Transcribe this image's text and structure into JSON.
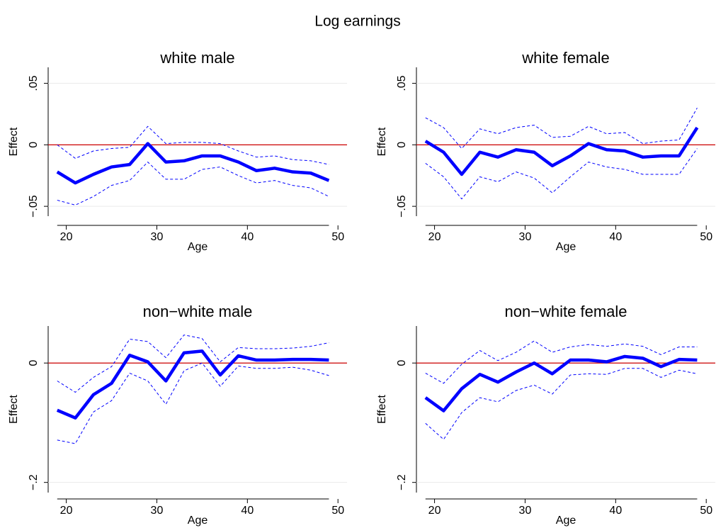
{
  "title": "Log earnings",
  "chart_data": [
    {
      "type": "line",
      "title": "white male",
      "xlabel": "Age",
      "ylabel": "Effect",
      "grid": true,
      "refline": 0,
      "refline_color": "#cc0000",
      "x": [
        19,
        21,
        23,
        25,
        27,
        29,
        31,
        33,
        35,
        37,
        39,
        41,
        43,
        45,
        47,
        49
      ],
      "xlim": [
        18,
        51
      ],
      "xticks": [
        20,
        30,
        40,
        50
      ],
      "ylim": [
        -0.058,
        0.063
      ],
      "yticks": [
        {
          "value": 0.05,
          "label": ".05"
        },
        0,
        {
          "value": -0.05,
          "label": "−.05"
        }
      ],
      "series": [
        {
          "color": "#0000ff",
          "dash": false,
          "values": [
            -0.022,
            -0.031,
            -0.024,
            -0.018,
            -0.016,
            0.001,
            -0.014,
            -0.013,
            -0.009,
            -0.009,
            -0.014,
            -0.021,
            -0.019,
            -0.022,
            -0.023,
            -0.029
          ]
        },
        {
          "color": "#0000ff",
          "dash": true,
          "values": [
            0,
            -0.011,
            -0.005,
            -0.003,
            -0.002,
            0.015,
            0.001,
            0.002,
            0.002,
            0.001,
            -0.005,
            -0.01,
            -0.009,
            -0.012,
            -0.013,
            -0.016
          ]
        },
        {
          "color": "#0000ff",
          "dash": true,
          "values": [
            -0.045,
            -0.049,
            -0.042,
            -0.033,
            -0.029,
            -0.014,
            -0.028,
            -0.028,
            -0.02,
            -0.018,
            -0.025,
            -0.031,
            -0.029,
            -0.033,
            -0.035,
            -0.042
          ]
        }
      ]
    },
    {
      "type": "line",
      "title": "white female",
      "xlabel": "Age",
      "ylabel": "Effect",
      "grid": true,
      "refline": 0,
      "refline_color": "#cc0000",
      "x": [
        19,
        21,
        23,
        25,
        27,
        29,
        31,
        33,
        35,
        37,
        39,
        41,
        43,
        45,
        47,
        49
      ],
      "xlim": [
        18,
        51
      ],
      "xticks": [
        20,
        30,
        40,
        50
      ],
      "ylim": [
        -0.058,
        0.063
      ],
      "yticks": [
        {
          "value": 0.05,
          "label": ".05"
        },
        0,
        {
          "value": -0.05,
          "label": "−.05"
        }
      ],
      "series": [
        {
          "color": "#0000ff",
          "dash": false,
          "values": [
            0.003,
            -0.006,
            -0.024,
            -0.006,
            -0.01,
            -0.004,
            -0.006,
            -0.017,
            -0.009,
            0.001,
            -0.004,
            -0.005,
            -0.01,
            -0.009,
            -0.009,
            0.014
          ]
        },
        {
          "color": "#0000ff",
          "dash": true,
          "values": [
            0.022,
            0.014,
            -0.003,
            0.013,
            0.009,
            0.014,
            0.016,
            0.006,
            0.007,
            0.015,
            0.009,
            0.01,
            0.001,
            0.003,
            0.004,
            0.03
          ]
        },
        {
          "color": "#0000ff",
          "dash": true,
          "values": [
            -0.015,
            -0.026,
            -0.044,
            -0.026,
            -0.03,
            -0.022,
            -0.027,
            -0.039,
            -0.026,
            -0.014,
            -0.018,
            -0.02,
            -0.024,
            -0.024,
            -0.024,
            -0.003
          ]
        }
      ]
    },
    {
      "type": "line",
      "title": "non−white male",
      "xlabel": "Age",
      "ylabel": "Effect",
      "grid": true,
      "refline": 0,
      "refline_color": "#cc0000",
      "x": [
        19,
        21,
        23,
        25,
        27,
        29,
        31,
        33,
        35,
        37,
        39,
        41,
        43,
        45,
        47,
        49
      ],
      "xlim": [
        18,
        51
      ],
      "xticks": [
        20,
        30,
        40,
        50
      ],
      "ylim": [
        -0.217,
        0.062
      ],
      "yticks": [
        0,
        {
          "value": -0.2,
          "label": "−.2"
        }
      ],
      "series": [
        {
          "color": "#0000ff",
          "dash": false,
          "values": [
            -0.079,
            -0.092,
            -0.053,
            -0.034,
            0.013,
            0.002,
            -0.03,
            0.017,
            0.02,
            -0.02,
            0.012,
            0.005,
            0.005,
            0.006,
            0.006,
            0.005
          ]
        },
        {
          "color": "#0000ff",
          "dash": true,
          "values": [
            -0.03,
            -0.049,
            -0.024,
            -0.006,
            0.04,
            0.036,
            0.009,
            0.047,
            0.041,
            0.002,
            0.026,
            0.024,
            0.024,
            0.025,
            0.028,
            0.034
          ]
        },
        {
          "color": "#0000ff",
          "dash": true,
          "values": [
            -0.129,
            -0.135,
            -0.082,
            -0.063,
            -0.017,
            -0.03,
            -0.069,
            -0.013,
            0.0,
            -0.039,
            -0.005,
            -0.009,
            -0.009,
            -0.007,
            -0.012,
            -0.021
          ]
        }
      ]
    },
    {
      "type": "line",
      "title": "non−white female",
      "xlabel": "Age",
      "ylabel": "Effect",
      "grid": true,
      "refline": 0,
      "refline_color": "#cc0000",
      "x": [
        19,
        21,
        23,
        25,
        27,
        29,
        31,
        33,
        35,
        37,
        39,
        41,
        43,
        45,
        47,
        49
      ],
      "xlim": [
        18,
        51
      ],
      "xticks": [
        20,
        30,
        40,
        50
      ],
      "ylim": [
        -0.217,
        0.062
      ],
      "yticks": [
        0,
        {
          "value": -0.2,
          "label": "−.2"
        }
      ],
      "series": [
        {
          "color": "#0000ff",
          "dash": false,
          "values": [
            -0.058,
            -0.08,
            -0.043,
            -0.019,
            -0.032,
            -0.015,
            0.0,
            -0.018,
            0.005,
            0.005,
            0.002,
            0.011,
            0.008,
            -0.006,
            0.006,
            0.005
          ]
        },
        {
          "color": "#0000ff",
          "dash": true,
          "values": [
            -0.017,
            -0.034,
            -0.002,
            0.021,
            0.004,
            0.018,
            0.037,
            0.018,
            0.027,
            0.031,
            0.028,
            0.032,
            0.028,
            0.014,
            0.027,
            0.027
          ]
        },
        {
          "color": "#0000ff",
          "dash": true,
          "values": [
            -0.101,
            -0.128,
            -0.083,
            -0.058,
            -0.065,
            -0.046,
            -0.037,
            -0.052,
            -0.02,
            -0.018,
            -0.019,
            -0.009,
            -0.009,
            -0.024,
            -0.012,
            -0.018
          ]
        }
      ]
    }
  ]
}
